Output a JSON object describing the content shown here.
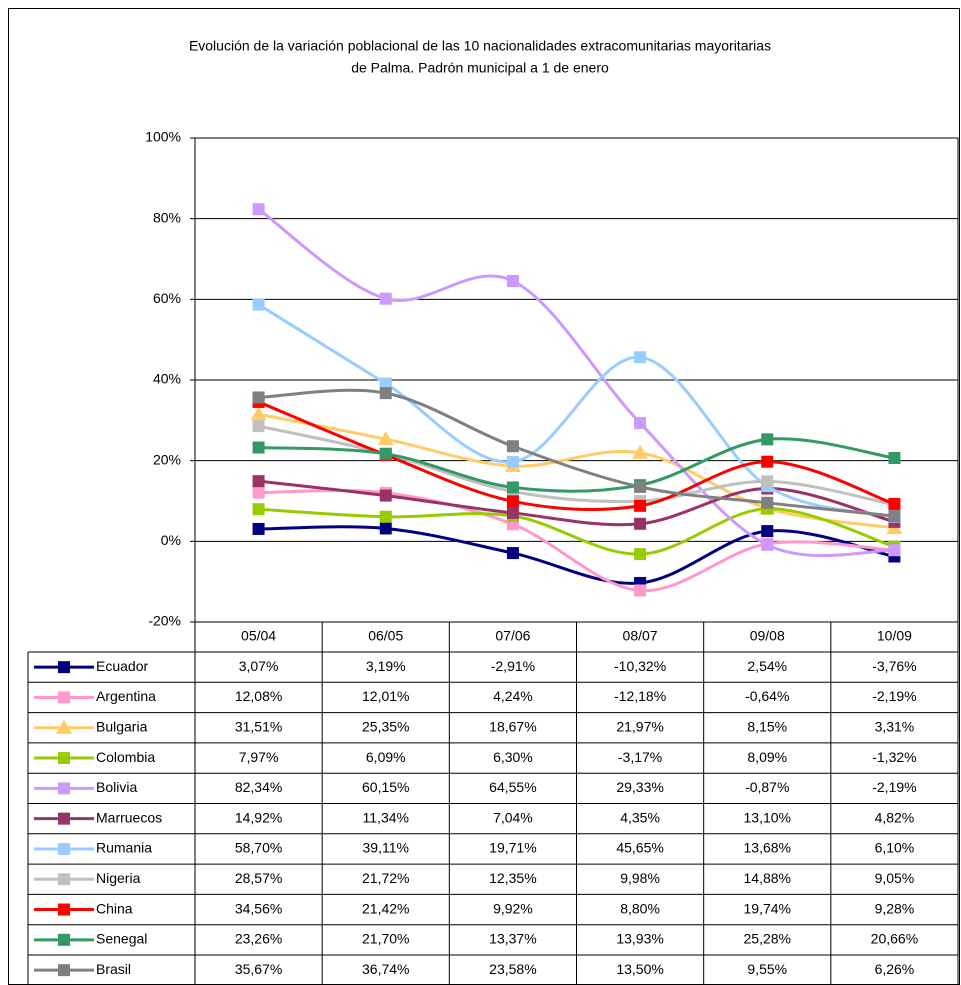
{
  "chart_data": {
    "type": "line",
    "title": [
      "Evolución de la variación poblacional de las 10 nacionalidades extracomunitarias mayoritarias",
      "de Palma. Padrón municipal a 1 de enero"
    ],
    "categories": [
      "05/04",
      "06/05",
      "07/06",
      "08/07",
      "09/08",
      "10/09"
    ],
    "ylim": [
      -20,
      100
    ],
    "yticks": [
      {
        "value": -20,
        "label": "-20%"
      },
      {
        "value": 0,
        "label": "0%"
      },
      {
        "value": 20,
        "label": "20%"
      },
      {
        "value": 40,
        "label": "40%"
      },
      {
        "value": 60,
        "label": "60%"
      },
      {
        "value": 80,
        "label": "80%"
      },
      {
        "value": 100,
        "label": "100%"
      }
    ],
    "grid": true,
    "smooth": true,
    "series": [
      {
        "name": "Ecuador",
        "color": "#000080",
        "marker": "square",
        "values": [
          3.07,
          3.19,
          -2.91,
          -10.32,
          2.54,
          -3.76
        ],
        "value_labels": [
          "3,07%",
          "3,19%",
          "-2,91%",
          "-10,32%",
          "2,54%",
          "-3,76%"
        ]
      },
      {
        "name": "Argentina",
        "color": "#ff99cc",
        "marker": "square",
        "values": [
          12.08,
          12.01,
          4.24,
          -12.18,
          -0.64,
          -2.19
        ],
        "value_labels": [
          "12,08%",
          "12,01%",
          "4,24%",
          "-12,18%",
          "-0,64%",
          "-2,19%"
        ]
      },
      {
        "name": "Bulgaria",
        "color": "#ffcc66",
        "marker": "triangle",
        "values": [
          31.51,
          25.35,
          18.67,
          21.97,
          8.15,
          3.31
        ],
        "value_labels": [
          "31,51%",
          "25,35%",
          "18,67%",
          "21,97%",
          "8,15%",
          "3,31%"
        ]
      },
      {
        "name": "Colombia",
        "color": "#99cc00",
        "marker": "square",
        "values": [
          7.97,
          6.09,
          6.3,
          -3.17,
          8.09,
          -1.32
        ],
        "value_labels": [
          "7,97%",
          "6,09%",
          "6,30%",
          "-3,17%",
          "8,09%",
          "-1,32%"
        ]
      },
      {
        "name": "Bolivia",
        "color": "#cc99ff",
        "marker": "square",
        "values": [
          82.34,
          60.15,
          64.55,
          29.33,
          -0.87,
          -2.19
        ],
        "value_labels": [
          "82,34%",
          "60,15%",
          "64,55%",
          "29,33%",
          "-0,87%",
          "-2,19%"
        ]
      },
      {
        "name": "Marruecos",
        "color": "#993366",
        "marker": "square",
        "values": [
          14.92,
          11.34,
          7.04,
          4.35,
          13.1,
          4.82
        ],
        "value_labels": [
          "14,92%",
          "11,34%",
          "7,04%",
          "4,35%",
          "13,10%",
          "4,82%"
        ]
      },
      {
        "name": "Rumania",
        "color": "#99ccff",
        "marker": "square",
        "values": [
          58.7,
          39.11,
          19.71,
          45.65,
          13.68,
          6.1
        ],
        "value_labels": [
          "58,70%",
          "39,11%",
          "19,71%",
          "45,65%",
          "13,68%",
          "6,10%"
        ]
      },
      {
        "name": "Nigeria",
        "color": "#c0c0c0",
        "marker": "square",
        "values": [
          28.57,
          21.72,
          12.35,
          9.98,
          14.88,
          9.05
        ],
        "value_labels": [
          "28,57%",
          "21,72%",
          "12,35%",
          "9,98%",
          "14,88%",
          "9,05%"
        ]
      },
      {
        "name": "China",
        "color": "#ff0000",
        "marker": "square",
        "values": [
          34.56,
          21.42,
          9.92,
          8.8,
          19.74,
          9.28
        ],
        "value_labels": [
          "34,56%",
          "21,42%",
          "9,92%",
          "8,80%",
          "19,74%",
          "9,28%"
        ]
      },
      {
        "name": "Senegal",
        "color": "#339966",
        "marker": "square",
        "values": [
          23.26,
          21.7,
          13.37,
          13.93,
          25.28,
          20.66
        ],
        "value_labels": [
          "23,26%",
          "21,70%",
          "13,37%",
          "13,93%",
          "25,28%",
          "20,66%"
        ]
      },
      {
        "name": "Brasil",
        "color": "#808080",
        "marker": "square",
        "values": [
          35.67,
          36.74,
          23.58,
          13.5,
          9.55,
          6.26
        ],
        "value_labels": [
          "35,67%",
          "36,74%",
          "23,58%",
          "13,50%",
          "9,55%",
          "6,26%"
        ]
      }
    ]
  }
}
